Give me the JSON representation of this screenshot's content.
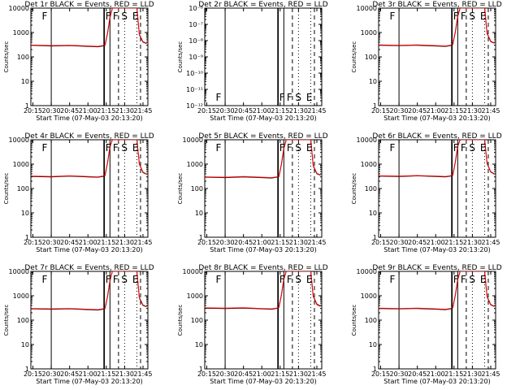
{
  "figure": {
    "common": {
      "xlabel": "Start Time (07-May-03 20:13:20)",
      "ylabel": "Counts/sec",
      "x_ticks": [
        "20:15",
        "20:30",
        "20:45",
        "21:00",
        "21:15",
        "21:30",
        "21:45"
      ],
      "log_ticks": [
        "1",
        "10",
        "100",
        "1000",
        "10000"
      ],
      "small_ticks": [
        "10⁻⁶",
        "10⁻⁷",
        "10⁻⁸",
        "10⁻⁹",
        "10⁻¹⁰",
        "10⁻¹¹",
        "10⁻¹²"
      ],
      "markers": [
        "F",
        "F",
        "F",
        "S",
        "E"
      ],
      "colors": {
        "events": "#000000",
        "lld": "#ff0000"
      }
    }
  },
  "chart_data": [
    {
      "type": "line",
      "title": "Det 1r BLACK = Events, RED = LLD",
      "xlabel": "Start Time (07-May-03 20:13:20)",
      "ylabel": "Counts/sec",
      "ylim": [
        1,
        10000
      ],
      "yscale": "log",
      "x_range": [
        "20:13:20",
        "21:49"
      ],
      "x_ticks": [
        "20:15",
        "20:30",
        "20:45",
        "21:00",
        "21:15",
        "21:30",
        "21:45"
      ],
      "series": [
        {
          "name": "Events",
          "x": [
            "20:13",
            "20:30",
            "20:45",
            "21:00",
            "21:08",
            "21:12",
            "21:14",
            "21:16",
            "21:18",
            "21:20",
            "21:22",
            "21:40",
            "21:42",
            "21:45",
            "21:48"
          ],
          "values": [
            300,
            280,
            290,
            270,
            260,
            280,
            300,
            900,
            4000,
            10000,
            10000,
            10000,
            800,
            400,
            350
          ]
        },
        {
          "name": "LLD",
          "x": [
            "20:13",
            "20:30",
            "20:45",
            "21:00",
            "21:08",
            "21:12",
            "21:14",
            "21:16",
            "21:18",
            "21:20",
            "21:22",
            "21:40",
            "21:42",
            "21:45",
            "21:48"
          ],
          "values": [
            310,
            290,
            300,
            280,
            270,
            290,
            310,
            950,
            4200,
            10000,
            10000,
            10000,
            850,
            420,
            360
          ]
        }
      ],
      "markers": [
        {
          "label": "F",
          "x": "20:21"
        },
        {
          "label": "F",
          "x": "21:13"
        },
        {
          "label": "F",
          "x": "21:19"
        },
        {
          "label": "S",
          "x": "21:26"
        },
        {
          "label": "E",
          "x": "21:35"
        }
      ]
    },
    {
      "type": "line",
      "title": "Det 2r BLACK = Events, RED = LLD",
      "xlabel": "Start Time (07-May-03 20:13:20)",
      "ylabel": "Counts/sec",
      "ylim": [
        1e-12,
        1e-06
      ],
      "yscale": "log",
      "x_range": [
        "20:13:20",
        "21:49"
      ],
      "x_ticks": [
        "20:15",
        "20:30",
        "20:45",
        "21:00",
        "21:15",
        "21:30",
        "21:45"
      ],
      "series": [],
      "markers": [
        {
          "label": "F",
          "x": "20:21"
        },
        {
          "label": "F",
          "x": "21:13"
        },
        {
          "label": "F",
          "x": "21:19"
        },
        {
          "label": "S",
          "x": "21:26"
        },
        {
          "label": "E",
          "x": "21:35"
        }
      ]
    },
    {
      "type": "line",
      "title": "Det 3r BLACK = Events, RED = LLD",
      "xlabel": "Start Time (07-May-03 20:13:20)",
      "ylabel": "Counts/sec",
      "ylim": [
        1,
        10000
      ],
      "yscale": "log",
      "x_range": [
        "20:13:20",
        "21:49"
      ],
      "x_ticks": [
        "20:15",
        "20:30",
        "20:45",
        "21:00",
        "21:15",
        "21:30",
        "21:45"
      ],
      "series": [
        {
          "name": "Events",
          "x": [
            "20:13",
            "20:30",
            "20:45",
            "21:00",
            "21:08",
            "21:12",
            "21:14",
            "21:16",
            "21:18",
            "21:20",
            "21:22",
            "21:40",
            "21:42",
            "21:45",
            "21:48"
          ],
          "values": [
            300,
            290,
            300,
            280,
            270,
            290,
            320,
            1000,
            4500,
            10000,
            10000,
            10000,
            900,
            420,
            360
          ]
        },
        {
          "name": "LLD",
          "x": [
            "20:13",
            "20:30",
            "20:45",
            "21:00",
            "21:08",
            "21:12",
            "21:14",
            "21:16",
            "21:18",
            "21:20",
            "21:22",
            "21:40",
            "21:42",
            "21:45",
            "21:48"
          ],
          "values": [
            310,
            300,
            310,
            290,
            280,
            300,
            330,
            1050,
            4700,
            10000,
            10000,
            10000,
            950,
            440,
            370
          ]
        }
      ],
      "markers": [
        {
          "label": "F",
          "x": "20:21"
        },
        {
          "label": "F",
          "x": "21:13"
        },
        {
          "label": "F",
          "x": "21:19"
        },
        {
          "label": "S",
          "x": "21:26"
        },
        {
          "label": "E",
          "x": "21:35"
        }
      ]
    },
    {
      "type": "line",
      "title": "Det 4r BLACK = Events, RED = LLD",
      "xlabel": "Start Time (07-May-03 20:13:20)",
      "ylabel": "Counts/sec",
      "ylim": [
        1,
        10000
      ],
      "yscale": "log",
      "x_range": [
        "20:13:20",
        "21:49"
      ],
      "x_ticks": [
        "20:15",
        "20:30",
        "20:45",
        "21:00",
        "21:15",
        "21:30",
        "21:45"
      ],
      "series": [
        {
          "name": "Events",
          "x": [
            "20:13",
            "20:30",
            "20:45",
            "21:00",
            "21:08",
            "21:12",
            "21:14",
            "21:16",
            "21:18",
            "21:20",
            "21:22",
            "21:40",
            "21:42",
            "21:45",
            "21:48"
          ],
          "values": [
            310,
            300,
            320,
            300,
            290,
            310,
            340,
            1100,
            5000,
            10000,
            10000,
            10000,
            1000,
            450,
            380
          ]
        },
        {
          "name": "LLD",
          "x": [
            "20:13",
            "20:30",
            "20:45",
            "21:00",
            "21:08",
            "21:12",
            "21:14",
            "21:16",
            "21:18",
            "21:20",
            "21:22",
            "21:40",
            "21:42",
            "21:45",
            "21:48"
          ],
          "values": [
            320,
            310,
            330,
            310,
            300,
            320,
            350,
            1150,
            5200,
            10000,
            10000,
            10000,
            1050,
            470,
            390
          ]
        }
      ],
      "markers": [
        {
          "label": "F",
          "x": "20:21"
        },
        {
          "label": "F",
          "x": "21:13"
        },
        {
          "label": "F",
          "x": "21:19"
        },
        {
          "label": "S",
          "x": "21:26"
        },
        {
          "label": "E",
          "x": "21:35"
        }
      ]
    },
    {
      "type": "line",
      "title": "Det 5r BLACK = Events, RED = LLD",
      "xlabel": "Start Time (07-May-03 20:13:20)",
      "ylabel": "Counts/sec",
      "ylim": [
        1,
        10000
      ],
      "yscale": "log",
      "x_range": [
        "20:13:20",
        "21:49"
      ],
      "x_ticks": [
        "20:15",
        "20:30",
        "20:45",
        "21:00",
        "21:15",
        "21:30",
        "21:45"
      ],
      "series": [
        {
          "name": "Events",
          "x": [
            "20:13",
            "20:30",
            "20:45",
            "21:00",
            "21:08",
            "21:12",
            "21:14",
            "21:16",
            "21:18",
            "21:20",
            "21:22",
            "21:40",
            "21:42",
            "21:45",
            "21:48"
          ],
          "values": [
            290,
            280,
            300,
            280,
            270,
            290,
            310,
            950,
            4300,
            10000,
            10000,
            10000,
            850,
            400,
            350
          ]
        },
        {
          "name": "LLD",
          "x": [
            "20:13",
            "20:30",
            "20:45",
            "21:00",
            "21:08",
            "21:12",
            "21:14",
            "21:16",
            "21:18",
            "21:20",
            "21:22",
            "21:40",
            "21:42",
            "21:45",
            "21:48"
          ],
          "values": [
            300,
            290,
            310,
            290,
            280,
            300,
            320,
            1000,
            4500,
            10000,
            10000,
            10000,
            900,
            420,
            360
          ]
        }
      ],
      "markers": [
        {
          "label": "F",
          "x": "20:21"
        },
        {
          "label": "F",
          "x": "21:13"
        },
        {
          "label": "F",
          "x": "21:19"
        },
        {
          "label": "S",
          "x": "21:26"
        },
        {
          "label": "E",
          "x": "21:35"
        }
      ]
    },
    {
      "type": "line",
      "title": "Det 6r BLACK = Events, RED = LLD",
      "xlabel": "Start Time (07-May-03 20:13:20)",
      "ylabel": "Counts/sec",
      "ylim": [
        1,
        10000
      ],
      "yscale": "log",
      "x_range": [
        "20:13:20",
        "21:49"
      ],
      "x_ticks": [
        "20:15",
        "20:30",
        "20:45",
        "21:00",
        "21:15",
        "21:30",
        "21:45"
      ],
      "series": [
        {
          "name": "Events",
          "x": [
            "20:13",
            "20:30",
            "20:45",
            "21:00",
            "21:08",
            "21:12",
            "21:14",
            "21:16",
            "21:18",
            "21:20",
            "21:22",
            "21:40",
            "21:42",
            "21:45",
            "21:48"
          ],
          "values": [
            320,
            310,
            330,
            310,
            300,
            320,
            350,
            1150,
            5200,
            10000,
            10000,
            10000,
            1050,
            470,
            390
          ]
        },
        {
          "name": "LLD",
          "x": [
            "20:13",
            "20:30",
            "20:45",
            "21:00",
            "21:08",
            "21:12",
            "21:14",
            "21:16",
            "21:18",
            "21:20",
            "21:22",
            "21:40",
            "21:42",
            "21:45",
            "21:48"
          ],
          "values": [
            330,
            320,
            340,
            320,
            310,
            330,
            360,
            1200,
            5400,
            10000,
            10000,
            10000,
            1100,
            490,
            400
          ]
        }
      ],
      "markers": [
        {
          "label": "F",
          "x": "20:21"
        },
        {
          "label": "F",
          "x": "21:13"
        },
        {
          "label": "F",
          "x": "21:19"
        },
        {
          "label": "S",
          "x": "21:26"
        },
        {
          "label": "E",
          "x": "21:35"
        }
      ]
    },
    {
      "type": "line",
      "title": "Det 7r BLACK = Events, RED = LLD",
      "xlabel": "Start Time (07-May-03 20:13:20)",
      "ylabel": "Counts/sec",
      "ylim": [
        1,
        10000
      ],
      "yscale": "log",
      "x_range": [
        "20:13:20",
        "21:49"
      ],
      "x_ticks": [
        "20:15",
        "20:30",
        "20:45",
        "21:00",
        "21:15",
        "21:30",
        "21:45"
      ],
      "series": [
        {
          "name": "Events",
          "x": [
            "20:13",
            "20:30",
            "20:45",
            "21:00",
            "21:08",
            "21:12",
            "21:14",
            "21:16",
            "21:18",
            "21:20",
            "21:22",
            "21:40",
            "21:42",
            "21:45",
            "21:48"
          ],
          "values": [
            290,
            280,
            290,
            270,
            260,
            280,
            300,
            900,
            4000,
            10000,
            10000,
            10000,
            800,
            400,
            350
          ]
        },
        {
          "name": "LLD",
          "x": [
            "20:13",
            "20:30",
            "20:45",
            "21:00",
            "21:08",
            "21:12",
            "21:14",
            "21:16",
            "21:18",
            "21:20",
            "21:22",
            "21:40",
            "21:42",
            "21:45",
            "21:48"
          ],
          "values": [
            300,
            290,
            300,
            280,
            270,
            290,
            310,
            950,
            4200,
            10000,
            10000,
            10000,
            850,
            420,
            360
          ]
        }
      ],
      "markers": [
        {
          "label": "F",
          "x": "20:21"
        },
        {
          "label": "F",
          "x": "21:13"
        },
        {
          "label": "F",
          "x": "21:19"
        },
        {
          "label": "S",
          "x": "21:26"
        },
        {
          "label": "E",
          "x": "21:35"
        }
      ]
    },
    {
      "type": "line",
      "title": "Det 8r BLACK = Events, RED = LLD",
      "xlabel": "Start Time (07-May-03 20:13:20)",
      "ylabel": "Counts/sec",
      "ylim": [
        1,
        10000
      ],
      "yscale": "log",
      "x_range": [
        "20:13:20",
        "21:49"
      ],
      "x_ticks": [
        "20:15",
        "20:30",
        "20:45",
        "21:00",
        "21:15",
        "21:30",
        "21:45"
      ],
      "series": [
        {
          "name": "Events",
          "x": [
            "20:13",
            "20:30",
            "20:45",
            "21:00",
            "21:08",
            "21:12",
            "21:14",
            "21:16",
            "21:18",
            "21:20",
            "21:22",
            "21:40",
            "21:42",
            "21:45",
            "21:48"
          ],
          "values": [
            310,
            300,
            310,
            290,
            280,
            300,
            330,
            1050,
            4700,
            10000,
            10000,
            10000,
            950,
            440,
            370
          ]
        },
        {
          "name": "LLD",
          "x": [
            "20:13",
            "20:30",
            "20:45",
            "21:00",
            "21:08",
            "21:12",
            "21:14",
            "21:16",
            "21:18",
            "21:20",
            "21:22",
            "21:40",
            "21:42",
            "21:45",
            "21:48"
          ],
          "values": [
            320,
            310,
            320,
            300,
            290,
            310,
            340,
            1100,
            4900,
            10000,
            10000,
            10000,
            1000,
            460,
            380
          ]
        }
      ],
      "markers": [
        {
          "label": "F",
          "x": "20:21"
        },
        {
          "label": "F",
          "x": "21:13"
        },
        {
          "label": "F",
          "x": "21:19"
        },
        {
          "label": "S",
          "x": "21:26"
        },
        {
          "label": "E",
          "x": "21:35"
        }
      ]
    },
    {
      "type": "line",
      "title": "Det 9r BLACK = Events, RED = LLD",
      "xlabel": "Start Time (07-May-03 20:13:20)",
      "ylabel": "Counts/sec",
      "ylim": [
        1,
        10000
      ],
      "yscale": "log",
      "x_range": [
        "20:13:20",
        "21:49"
      ],
      "x_ticks": [
        "20:15",
        "20:30",
        "20:45",
        "21:00",
        "21:15",
        "21:30",
        "21:45"
      ],
      "series": [
        {
          "name": "Events",
          "x": [
            "20:13",
            "20:30",
            "20:45",
            "21:00",
            "21:08",
            "21:12",
            "21:14",
            "21:16",
            "21:18",
            "21:20",
            "21:22",
            "21:40",
            "21:42",
            "21:45",
            "21:48"
          ],
          "values": [
            300,
            290,
            300,
            280,
            270,
            290,
            320,
            1000,
            4500,
            10000,
            10000,
            10000,
            900,
            420,
            360
          ]
        },
        {
          "name": "LLD",
          "x": [
            "20:13",
            "20:30",
            "20:45",
            "21:00",
            "21:08",
            "21:12",
            "21:14",
            "21:16",
            "21:18",
            "21:20",
            "21:22",
            "21:40",
            "21:42",
            "21:45",
            "21:48"
          ],
          "values": [
            310,
            300,
            310,
            290,
            280,
            300,
            330,
            1050,
            4700,
            10000,
            10000,
            10000,
            950,
            440,
            370
          ]
        }
      ],
      "markers": [
        {
          "label": "F",
          "x": "20:21"
        },
        {
          "label": "F",
          "x": "21:13"
        },
        {
          "label": "F",
          "x": "21:19"
        },
        {
          "label": "S",
          "x": "21:26"
        },
        {
          "label": "E",
          "x": "21:35"
        }
      ]
    }
  ]
}
